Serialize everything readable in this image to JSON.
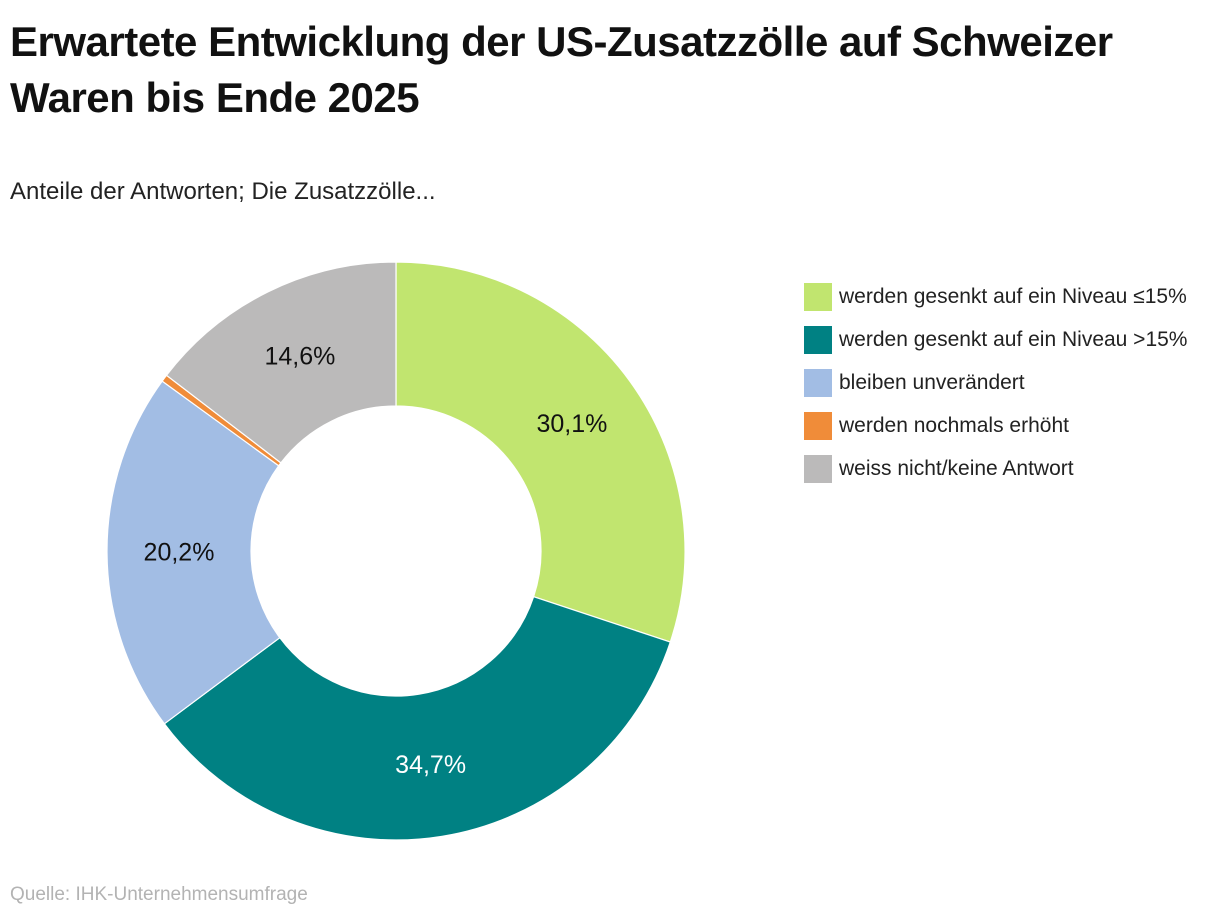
{
  "title": "Erwartete Entwicklung der US-Zusatzzölle auf Schweizer Waren bis Ende 2025",
  "subtitle": "Anteile der Antworten; Die Zusatzzölle...",
  "source": "Quelle: IHK-Unternehmensumfrage",
  "chart_data": {
    "type": "pie",
    "variant": "donut",
    "title": "Erwartete Entwicklung der US-Zusatzzölle auf Schweizer Waren bis Ende 2025",
    "subtitle": "Anteile der Antworten; Die Zusatzzölle...",
    "legend_position": "right",
    "slices": [
      {
        "name": "werden gesenkt auf ein Niveau ≤15%",
        "value": 30.1,
        "label": "30,1%",
        "color": "#c1e56f",
        "label_color": "#111111"
      },
      {
        "name": "werden gesenkt auf ein Niveau >15%",
        "value": 34.7,
        "label": "34,7%",
        "color": "#008183",
        "label_color": "#ffffff"
      },
      {
        "name": "bleiben unverändert",
        "value": 20.2,
        "label": "20,2%",
        "color": "#a2bde4",
        "label_color": "#111111"
      },
      {
        "name": "werden nochmals erhöht",
        "value": 0.4,
        "label": "",
        "color": "#f08c39",
        "label_color": "#111111"
      },
      {
        "name": "weiss nicht/keine Antwort",
        "value": 14.6,
        "label": "14,6%",
        "color": "#bbbaba",
        "label_color": "#111111"
      }
    ]
  }
}
